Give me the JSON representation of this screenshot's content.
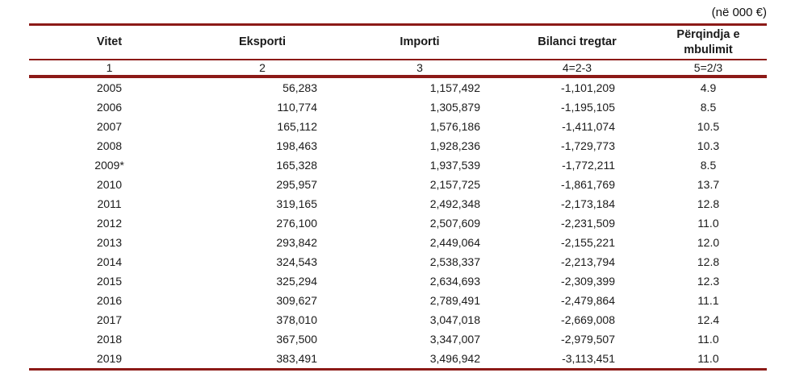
{
  "unit_note": "(në 000 €)",
  "colors": {
    "rule": "#8C1A17",
    "text": "#1a1a1a"
  },
  "table": {
    "columns": [
      {
        "label": "Vitet",
        "code": "1"
      },
      {
        "label": "Eksporti",
        "code": "2"
      },
      {
        "label": "Importi",
        "code": "3"
      },
      {
        "label": "Bilanci tregtar",
        "code": "4=2-3"
      },
      {
        "label": "Përqindja e mbulimit",
        "code": "5=2/3"
      }
    ],
    "rows": [
      [
        "2005",
        "56,283",
        "1,157,492",
        "-1,101,209",
        "4.9"
      ],
      [
        "2006",
        "110,774",
        "1,305,879",
        "-1,195,105",
        "8.5"
      ],
      [
        "2007",
        "165,112",
        "1,576,186",
        "-1,411,074",
        "10.5"
      ],
      [
        "2008",
        "198,463",
        "1,928,236",
        "-1,729,773",
        "10.3"
      ],
      [
        "2009*",
        "165,328",
        "1,937,539",
        "-1,772,211",
        "8.5"
      ],
      [
        "2010",
        "295,957",
        "2,157,725",
        "-1,861,769",
        "13.7"
      ],
      [
        "2011",
        "319,165",
        "2,492,348",
        "-2,173,184",
        "12.8"
      ],
      [
        "2012",
        "276,100",
        "2,507,609",
        "-2,231,509",
        "11.0"
      ],
      [
        "2013",
        "293,842",
        "2,449,064",
        "-2,155,221",
        "12.0"
      ],
      [
        "2014",
        "324,543",
        "2,538,337",
        "-2,213,794",
        "12.8"
      ],
      [
        "2015",
        "325,294",
        "2,634,693",
        "-2,309,399",
        "12.3"
      ],
      [
        "2016",
        "309,627",
        "2,789,491",
        "-2,479,864",
        "11.1"
      ],
      [
        "2017",
        "378,010",
        "3,047,018",
        "-2,669,008",
        "12.4"
      ],
      [
        "2018",
        "367,500",
        "3,347,007",
        "-2,979,507",
        "11.0"
      ],
      [
        "2019",
        "383,491",
        "3,496,942",
        "-3,113,451",
        "11.0"
      ]
    ]
  }
}
